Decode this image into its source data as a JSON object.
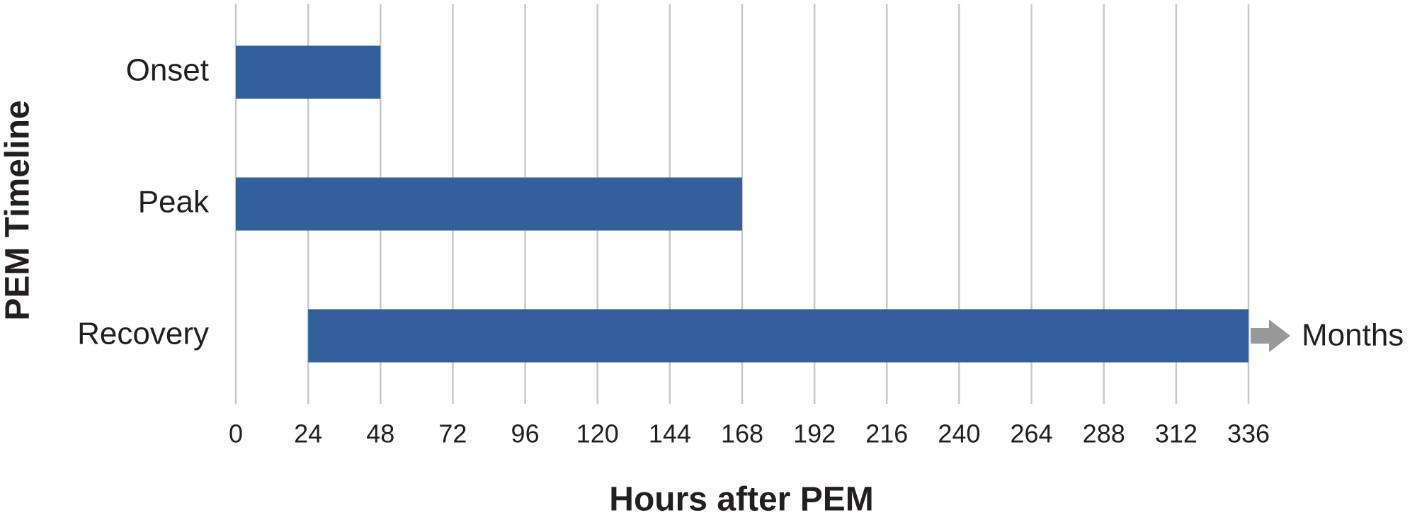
{
  "chart_data": {
    "type": "range-bar",
    "y_label": "PEM Timeline",
    "x_label": "Hours after PEM",
    "categories": [
      "Onset",
      "Peak",
      "Recovery"
    ],
    "starts": [
      0,
      0,
      24
    ],
    "values": [
      48,
      168,
      336
    ],
    "color": "#31609a",
    "xlim": [
      0,
      336
    ],
    "xticks": [
      0,
      24,
      48,
      72,
      96,
      120,
      144,
      168,
      192,
      216,
      240,
      264,
      288,
      312,
      336
    ],
    "grid": true,
    "annotation": "Months"
  }
}
